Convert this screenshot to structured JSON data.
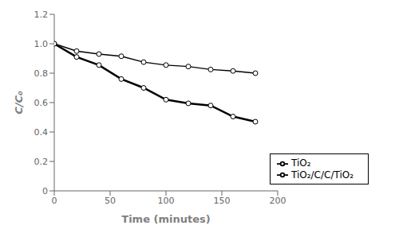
{
  "chart_data": {
    "type": "line",
    "xlabel": "Time (minutes)",
    "ylabel": "C/C₀",
    "x": [
      0,
      20,
      40,
      60,
      80,
      100,
      120,
      140,
      160,
      180
    ],
    "series": [
      {
        "name": "TiO₂",
        "color": "black",
        "marker": "circle",
        "values": [
          1.0,
          0.95,
          0.93,
          0.915,
          0.875,
          0.855,
          0.845,
          0.825,
          0.815,
          0.8
        ]
      },
      {
        "name": "TiO₂/C/C/TiO₂",
        "color": "black",
        "marker": "circle",
        "values": [
          1.0,
          0.91,
          0.855,
          0.76,
          0.7,
          0.62,
          0.595,
          0.58,
          0.505,
          0.47
        ]
      }
    ],
    "xlim": [
      0,
      200
    ],
    "ylim": [
      0,
      1.2
    ],
    "xticks": [
      0,
      50,
      100,
      150,
      200
    ],
    "yticks": [
      0,
      0.2,
      0.4,
      0.6,
      0.8,
      {
        "value": 1.0,
        "label": "1.0"
      },
      1.2
    ],
    "grid": false,
    "legend": "lower right"
  }
}
